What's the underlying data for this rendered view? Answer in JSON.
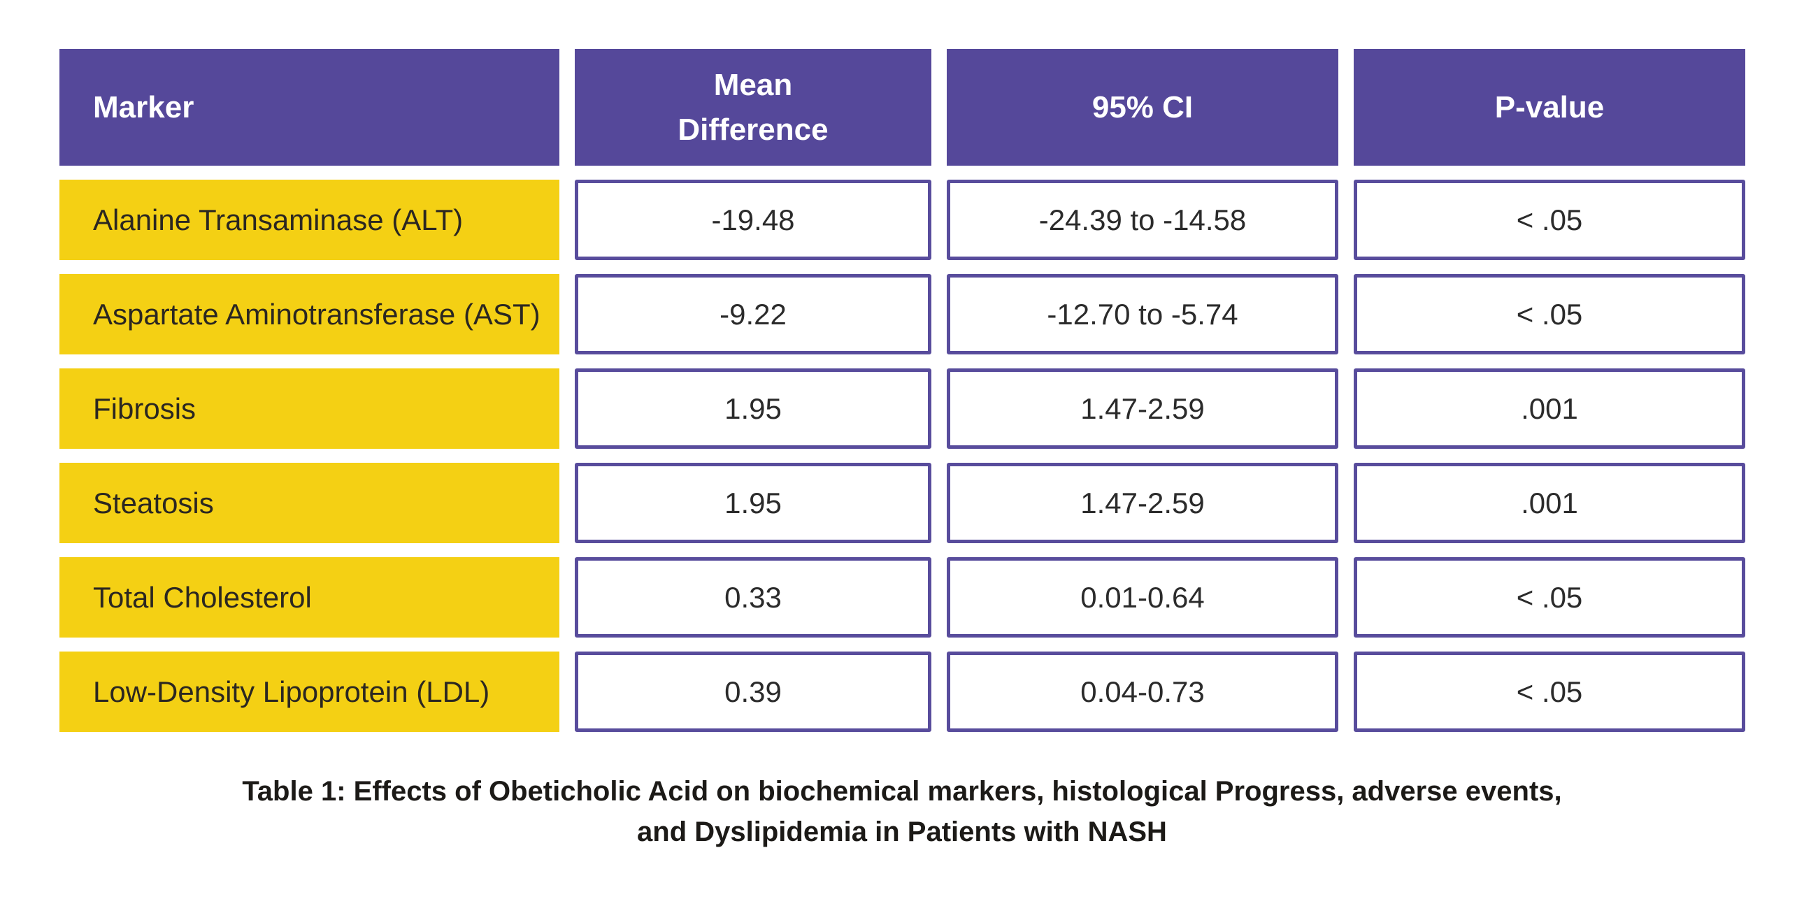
{
  "colors": {
    "page_bg": "#FFFFFF",
    "header_bg": "#55489A",
    "header_text": "#FFFFFF",
    "marker_bg": "#F4D014",
    "marker_text": "#2B2721",
    "cell_bg": "#FFFFFF",
    "cell_border": "#584C9C",
    "cell_text": "#2B2B2B",
    "caption_text": "#1C1A17"
  },
  "table": {
    "header": {
      "marker": "Marker",
      "mean_difference": "Mean\nDifference",
      "ci": "95% CI",
      "p_value": "P-value"
    },
    "rows": [
      {
        "marker": "Alanine Transaminase (ALT)",
        "mean_difference": "-19.48",
        "ci": "-24.39 to -14.58",
        "p_value": "< .05"
      },
      {
        "marker": "Aspartate Aminotransferase (AST)",
        "mean_difference": "-9.22",
        "ci": "-12.70 to -5.74",
        "p_value": "< .05"
      },
      {
        "marker": "Fibrosis",
        "mean_difference": "1.95",
        "ci": "1.47-2.59",
        "p_value": ".001"
      },
      {
        "marker": "Steatosis",
        "mean_difference": "1.95",
        "ci": "1.47-2.59",
        "p_value": ".001"
      },
      {
        "marker": "Total Cholesterol",
        "mean_difference": "0.33",
        "ci": "0.01-0.64",
        "p_value": "< .05"
      },
      {
        "marker": "Low-Density Lipoprotein (LDL)",
        "mean_difference": "0.39",
        "ci": "0.04-0.73",
        "p_value": "< .05"
      }
    ]
  },
  "caption": "Table 1: Effects of Obeticholic Acid on biochemical markers, histological Progress, adverse events, and Dyslipidemia in Patients with NASH"
}
